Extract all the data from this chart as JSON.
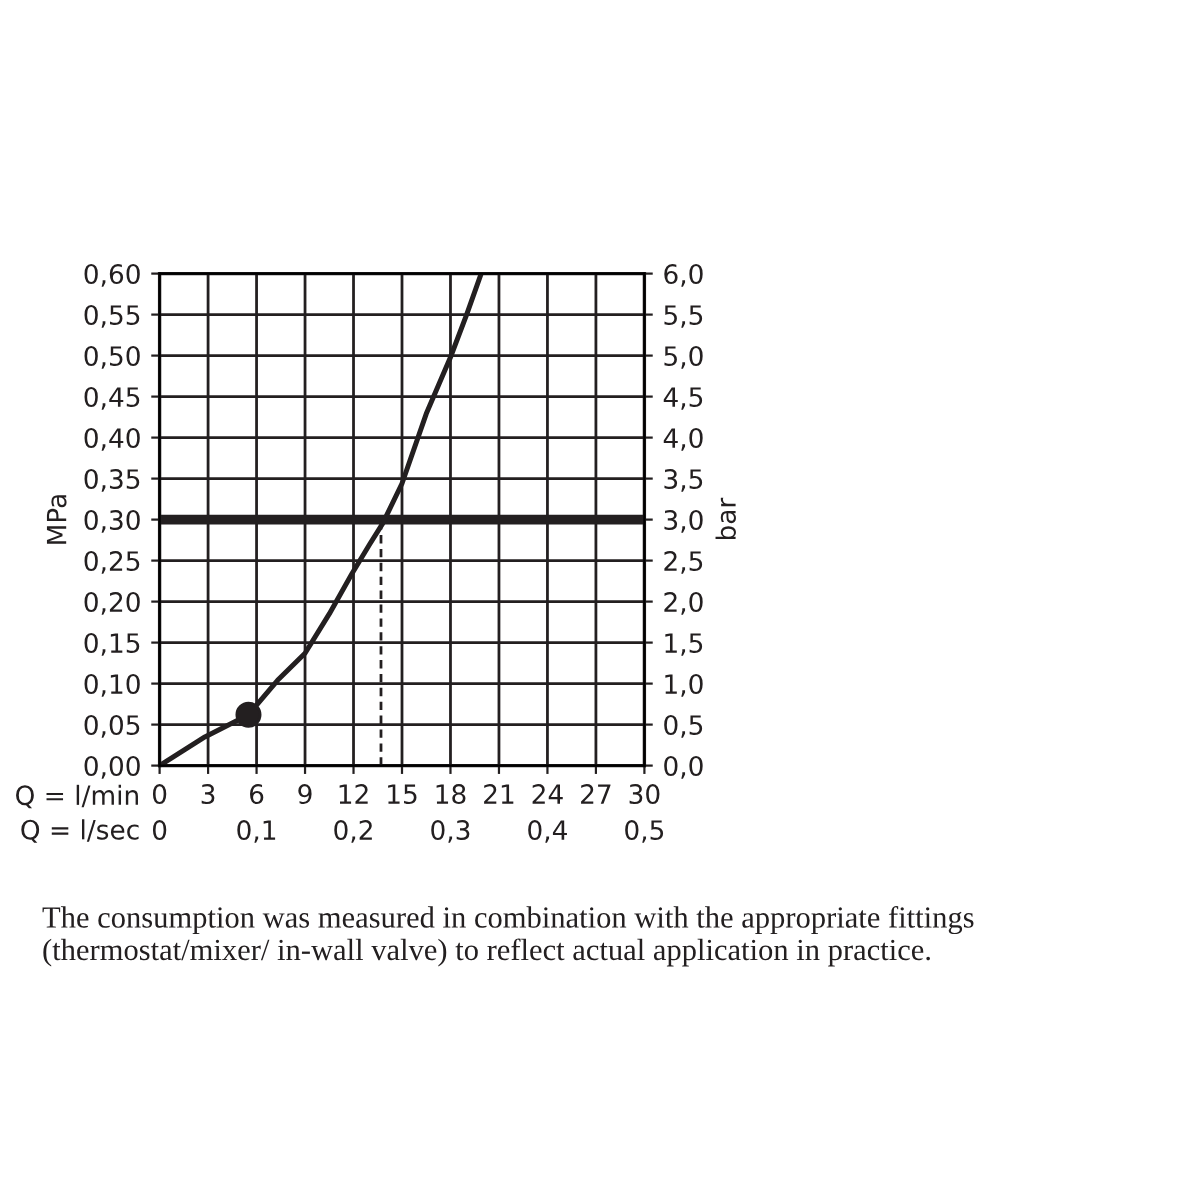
{
  "chart_data": {
    "type": "line",
    "xlabel": "Q = l/min",
    "ylabel": "MPa",
    "y2label": "bar",
    "x2label": "Q = l/sec",
    "xlim": [
      0,
      30
    ],
    "xticks": [
      0,
      3,
      6,
      9,
      12,
      15,
      18,
      21,
      24,
      27,
      30
    ],
    "x2lim": [
      0,
      0.5
    ],
    "x2ticks": [
      0,
      {
        "value": 0.1,
        "label": "0,1"
      },
      {
        "value": 0.2,
        "label": "0,2"
      },
      {
        "value": 0.3,
        "label": "0,3"
      },
      {
        "value": 0.4,
        "label": "0,4"
      },
      {
        "value": 0.5,
        "label": "0,5"
      }
    ],
    "ylim": [
      0,
      0.6
    ],
    "yticks": [
      {
        "value": 0,
        "label": "0,00"
      },
      {
        "value": 0.05,
        "label": "0,05"
      },
      {
        "value": 0.1,
        "label": "0,10"
      },
      {
        "value": 0.15,
        "label": "0,15"
      },
      {
        "value": 0.2,
        "label": "0,20"
      },
      {
        "value": 0.25,
        "label": "0,25"
      },
      {
        "value": 0.3,
        "label": "0,30"
      },
      {
        "value": 0.35,
        "label": "0,35"
      },
      {
        "value": 0.4,
        "label": "0,40"
      },
      {
        "value": 0.45,
        "label": "0,45"
      },
      {
        "value": 0.5,
        "label": "0,50"
      },
      {
        "value": 0.55,
        "label": "0,55"
      },
      {
        "value": 0.6,
        "label": "0,60"
      }
    ],
    "y2lim": [
      0,
      6
    ],
    "y2ticks": [
      {
        "value": 0,
        "label": "0,0"
      },
      {
        "value": 0.5,
        "label": "0,5"
      },
      {
        "value": 1,
        "label": "1,0"
      },
      {
        "value": 1.5,
        "label": "1,5"
      },
      {
        "value": 2,
        "label": "2,0"
      },
      {
        "value": 2.5,
        "label": "2,5"
      },
      {
        "value": 3,
        "label": "3,0"
      },
      {
        "value": 3.5,
        "label": "3,5"
      },
      {
        "value": 4,
        "label": "4,0"
      },
      {
        "value": 4.5,
        "label": "4,5"
      },
      {
        "value": 5,
        "label": "5,0"
      },
      {
        "value": 5.5,
        "label": "5,5"
      },
      {
        "value": 6,
        "label": "6,0"
      }
    ],
    "grid": true,
    "series": [
      {
        "color": "#231f20",
        "line_style": "solid",
        "x": [
          0,
          2.8,
          4.5,
          5.5,
          7.3,
          9,
          10.5,
          11.9,
          13,
          13.8,
          15,
          16.5,
          18,
          19,
          19.9
        ],
        "values": [
          0,
          0.035,
          0.052,
          0.062,
          0.104,
          0.137,
          0.185,
          0.234,
          0.27,
          0.295,
          0.344,
          0.429,
          0.498,
          0.55,
          0.6
        ]
      },
      {
        "type": "scatter",
        "color": "#231f20",
        "marker": "circle",
        "x": [
          5.5
        ],
        "values": [
          0.062
        ]
      },
      {
        "type": "line",
        "color": "#231f20",
        "line_style": "dashed",
        "x": [
          13.7,
          13.7
        ],
        "values": [
          0,
          0.3
        ]
      }
    ],
    "ref_lines": [
      {
        "axis": "y",
        "value": 0.3,
        "color": "#231f20"
      }
    ],
    "annotations": [
      "The consumption was measured in combination with the appropriate fittings (thermostat/mixer/ in-wall valve) to reflect actual application in practice."
    ]
  }
}
